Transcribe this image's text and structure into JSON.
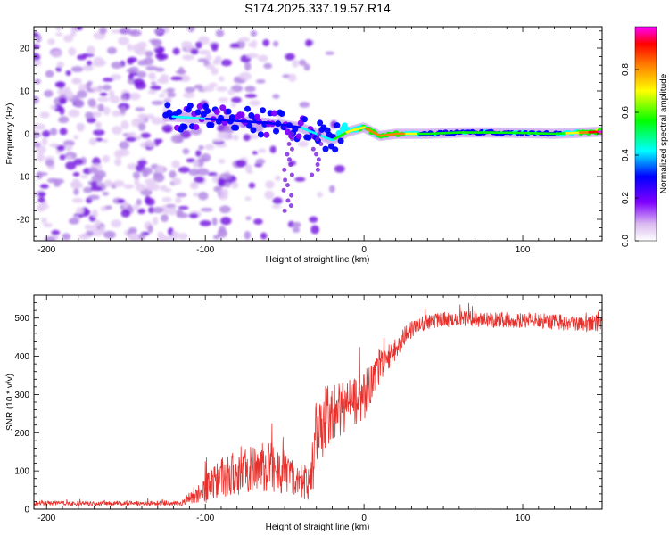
{
  "title": "S174.2025.337.19.57.R14",
  "chart_data": [
    {
      "type": "heatmap",
      "title": "S174.2025.337.19.57.R14",
      "xlabel": "Height of straight line (km)",
      "ylabel": "Frequency (Hz)",
      "xlim": [
        -208,
        150
      ],
      "ylim": [
        -25,
        25
      ],
      "xticks": [
        -200,
        -100,
        0,
        100
      ],
      "yticks": [
        -20,
        -10,
        0,
        10,
        20
      ],
      "xtick_labels": [
        "-200",
        "-100",
        "0",
        "100"
      ],
      "ytick_labels": [
        "-20",
        "-10",
        "0",
        "10",
        "20"
      ],
      "colorbar": {
        "label": "Normalized spectral amplitude",
        "range": [
          0,
          1
        ],
        "ticks": [
          0.0,
          0.2,
          0.4,
          0.6,
          0.8
        ],
        "tick_labels": [
          "0.0",
          "0.2",
          "0.4",
          "0.6",
          "0.8"
        ],
        "colors": [
          "#ffffff",
          "#d9b8f0",
          "#7f00ff",
          "#0000ff",
          "#00ffff",
          "#00ff00",
          "#ffff00",
          "#ff8000",
          "#ff0000",
          "#ff00ff"
        ]
      },
      "band": {
        "description_points_x": [
          -120,
          -100,
          -80,
          -60,
          -40,
          -30,
          -20,
          -10,
          0,
          10,
          20,
          40,
          60,
          80,
          100,
          120,
          150
        ],
        "center_freq_hz": [
          4,
          3.5,
          3,
          2.5,
          1.5,
          0,
          -1.5,
          0.5,
          1.5,
          -0.5,
          0,
          0,
          0.3,
          0.3,
          0.2,
          0,
          0.5
        ],
        "amplitude": [
          0.35,
          0.3,
          0.28,
          0.3,
          0.3,
          0.35,
          0.4,
          0.6,
          0.7,
          0.75,
          0.8,
          0.45,
          0.45,
          0.45,
          0.45,
          0.45,
          0.95
        ]
      }
    },
    {
      "type": "line",
      "title": "",
      "xlabel": "Height of straight line (km)",
      "ylabel": "SNR (10 * v/v)",
      "xlim": [
        -208,
        150
      ],
      "ylim": [
        0,
        560
      ],
      "xticks": [
        -200,
        -100,
        0,
        100
      ],
      "yticks": [
        0,
        100,
        200,
        300,
        400,
        500
      ],
      "xtick_labels": [
        "-200",
        "-100",
        "0",
        "100"
      ],
      "ytick_labels": [
        "0",
        "100",
        "200",
        "300",
        "400",
        "500"
      ],
      "color": "#e8312c",
      "series": [
        {
          "name": "SNR",
          "x": [
            -208,
            -150,
            -115,
            -110,
            -100,
            -90,
            -80,
            -70,
            -60,
            -50,
            -40,
            -35,
            -32,
            -30,
            -25,
            -20,
            -15,
            -10,
            -5,
            0,
            5,
            10,
            15,
            20,
            25,
            30,
            40,
            60,
            80,
            100,
            120,
            140,
            150
          ],
          "values": [
            15,
            15,
            15,
            30,
            55,
            80,
            100,
            105,
            110,
            100,
            75,
            60,
            120,
            200,
            230,
            250,
            260,
            275,
            290,
            300,
            330,
            370,
            400,
            420,
            450,
            470,
            490,
            500,
            495,
            495,
            490,
            485,
            490
          ],
          "noise_amplitude": [
            6,
            6,
            6,
            15,
            40,
            55,
            65,
            65,
            65,
            60,
            45,
            40,
            70,
            90,
            90,
            80,
            70,
            70,
            70,
            70,
            50,
            40,
            35,
            30,
            25,
            22,
            20,
            20,
            20,
            20,
            20,
            22,
            22
          ]
        }
      ]
    }
  ]
}
